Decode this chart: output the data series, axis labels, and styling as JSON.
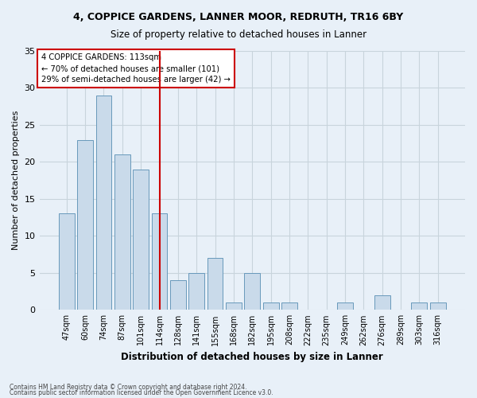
{
  "title1": "4, COPPICE GARDENS, LANNER MOOR, REDRUTH, TR16 6BY",
  "title2": "Size of property relative to detached houses in Lanner",
  "xlabel": "Distribution of detached houses by size in Lanner",
  "ylabel": "Number of detached properties",
  "categories": [
    "47sqm",
    "60sqm",
    "74sqm",
    "87sqm",
    "101sqm",
    "114sqm",
    "128sqm",
    "141sqm",
    "155sqm",
    "168sqm",
    "182sqm",
    "195sqm",
    "208sqm",
    "222sqm",
    "235sqm",
    "249sqm",
    "262sqm",
    "276sqm",
    "289sqm",
    "303sqm",
    "316sqm"
  ],
  "values": [
    13,
    23,
    29,
    21,
    19,
    13,
    4,
    5,
    7,
    1,
    5,
    1,
    1,
    0,
    0,
    1,
    0,
    2,
    0,
    1,
    1
  ],
  "bar_color": "#c9daea",
  "bar_edge_color": "#6899bb",
  "vline_x_index": 5,
  "vline_color": "#cc0000",
  "annotation_lines": [
    "4 COPPICE GARDENS: 113sqm",
    "← 70% of detached houses are smaller (101)",
    "29% of semi-detached houses are larger (42) →"
  ],
  "annotation_box_color": "#ffffff",
  "annotation_box_edge": "#cc0000",
  "ylim": [
    0,
    35
  ],
  "yticks": [
    0,
    5,
    10,
    15,
    20,
    25,
    30,
    35
  ],
  "grid_color": "#c8d4dc",
  "background_color": "#e8f0f8",
  "footer1": "Contains HM Land Registry data © Crown copyright and database right 2024.",
  "footer2": "Contains public sector information licensed under the Open Government Licence v3.0."
}
